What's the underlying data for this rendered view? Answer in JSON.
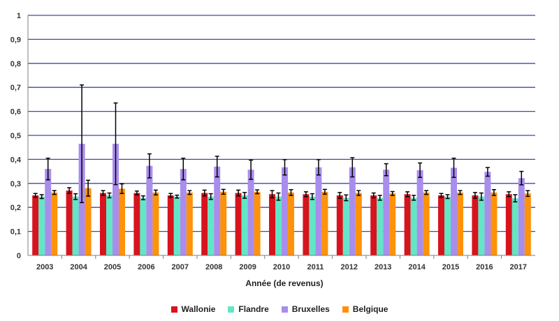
{
  "chart_data": {
    "type": "bar",
    "title": "",
    "xlabel": "Année (de revenus)",
    "ylabel": "",
    "ylim": [
      0,
      1
    ],
    "yticks": [
      "0",
      "0,1",
      "0,2",
      "0,3",
      "0,4",
      "0,5",
      "0,6",
      "0,7",
      "0,8",
      "0,9",
      "1"
    ],
    "grid": true,
    "legend_position": "bottom",
    "categories": [
      "2003",
      "2004",
      "2005",
      "2006",
      "2007",
      "2008",
      "2009",
      "2010",
      "2011",
      "2012",
      "2013",
      "2014",
      "2015",
      "2016",
      "2017"
    ],
    "series": [
      {
        "name": "Wallonie",
        "color": "#d7141d",
        "values": [
          0.25,
          0.27,
          0.26,
          0.26,
          0.25,
          0.26,
          0.26,
          0.255,
          0.255,
          0.25,
          0.25,
          0.255,
          0.25,
          0.25,
          0.255
        ],
        "errors": [
          0.008,
          0.012,
          0.01,
          0.008,
          0.008,
          0.012,
          0.012,
          0.015,
          0.01,
          0.012,
          0.01,
          0.01,
          0.008,
          0.012,
          0.01
        ]
      },
      {
        "name": "Flandre",
        "color": "#63e6c6",
        "values": [
          0.245,
          0.245,
          0.25,
          0.24,
          0.245,
          0.245,
          0.25,
          0.245,
          0.245,
          0.24,
          0.24,
          0.24,
          0.245,
          0.245,
          0.238
        ],
        "errors": [
          0.008,
          0.012,
          0.01,
          0.008,
          0.006,
          0.012,
          0.012,
          0.015,
          0.012,
          0.012,
          0.01,
          0.01,
          0.008,
          0.015,
          0.015
        ]
      },
      {
        "name": "Bruxelles",
        "color": "#a98ded",
        "values": [
          0.36,
          0.465,
          0.465,
          0.373,
          0.36,
          0.37,
          0.357,
          0.367,
          0.367,
          0.367,
          0.357,
          0.355,
          0.365,
          0.348,
          0.322
        ],
        "errors": [
          0.045,
          0.245,
          0.17,
          0.05,
          0.045,
          0.043,
          0.04,
          0.032,
          0.032,
          0.04,
          0.025,
          0.03,
          0.04,
          0.018,
          0.028
        ]
      },
      {
        "name": "Belgique",
        "color": "#fe9209",
        "values": [
          0.262,
          0.28,
          0.278,
          0.262,
          0.262,
          0.265,
          0.265,
          0.262,
          0.265,
          0.26,
          0.258,
          0.262,
          0.262,
          0.262,
          0.258
        ],
        "errors": [
          0.008,
          0.033,
          0.02,
          0.01,
          0.008,
          0.01,
          0.008,
          0.012,
          0.01,
          0.01,
          0.008,
          0.008,
          0.008,
          0.012,
          0.012
        ]
      }
    ]
  }
}
